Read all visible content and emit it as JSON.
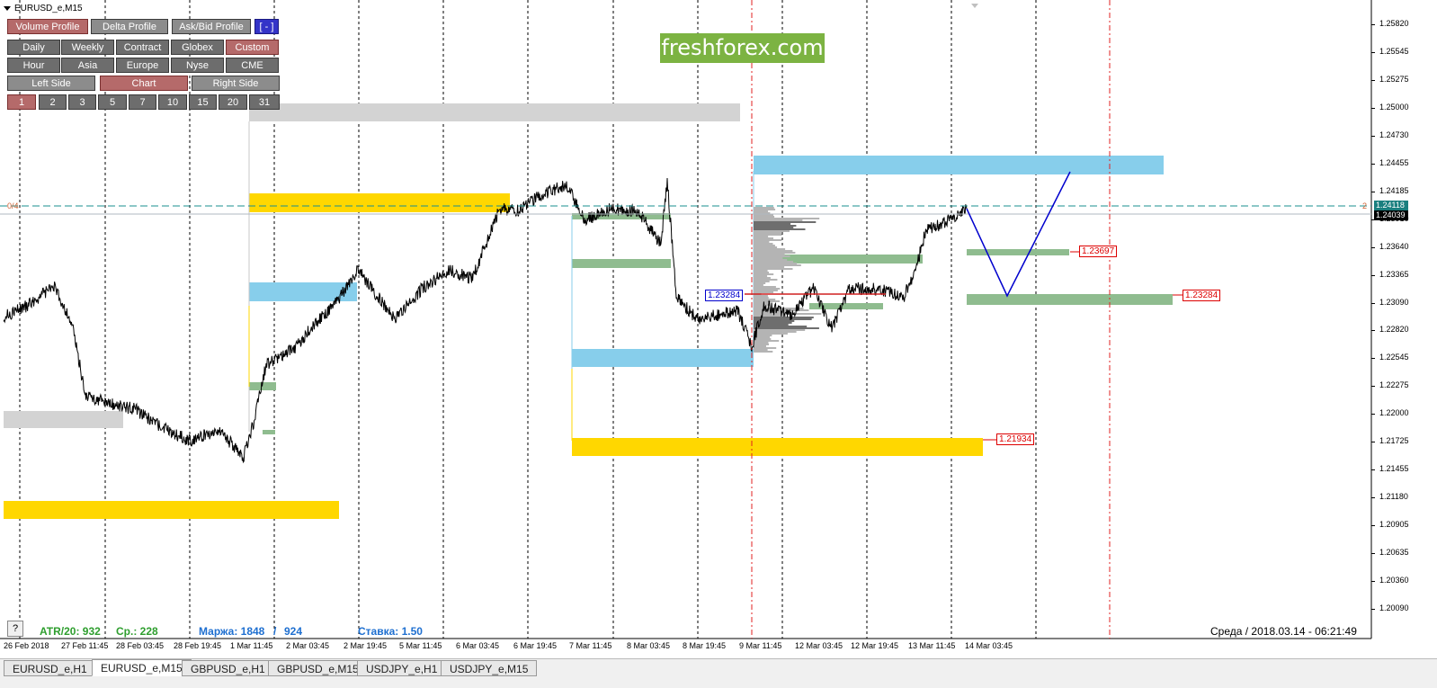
{
  "window": {
    "symbol": "EURUSD_e,M15"
  },
  "panel": {
    "row1": [
      {
        "label": "Volume Profile",
        "state": "active"
      },
      {
        "label": "Delta Profile",
        "state": "light"
      },
      {
        "label": "Ask/Bid Profile",
        "state": "light"
      },
      {
        "label": "[ - ]",
        "state": "blue"
      }
    ],
    "row2": [
      {
        "label": "Daily",
        "state": "normal"
      },
      {
        "label": "Weekly",
        "state": "normal"
      },
      {
        "label": "Contract",
        "state": "normal"
      },
      {
        "label": "Globex",
        "state": "normal"
      },
      {
        "label": "Custom",
        "state": "active"
      }
    ],
    "row3": [
      {
        "label": "Hour",
        "state": "normal"
      },
      {
        "label": "Asia",
        "state": "normal"
      },
      {
        "label": "Europe",
        "state": "normal"
      },
      {
        "label": "Nyse",
        "state": "normal"
      },
      {
        "label": "CME",
        "state": "normal"
      }
    ],
    "row4": [
      {
        "label": "Left Side",
        "state": "light"
      },
      {
        "label": "Chart",
        "state": "active"
      },
      {
        "label": "Right Side",
        "state": "light"
      }
    ],
    "row5": [
      {
        "label": "1",
        "state": "active"
      },
      {
        "label": "2",
        "state": "normal"
      },
      {
        "label": "3",
        "state": "normal"
      },
      {
        "label": "5",
        "state": "normal"
      },
      {
        "label": "7",
        "state": "normal"
      },
      {
        "label": "10",
        "state": "normal"
      },
      {
        "label": "15",
        "state": "normal"
      },
      {
        "label": "20",
        "state": "normal"
      },
      {
        "label": "31",
        "state": "normal"
      }
    ]
  },
  "watermark": "freshforex.com",
  "price_axis": [
    "1.25820",
    "1.25545",
    "1.25275",
    "1.25000",
    "1.24730",
    "1.24455",
    "1.24185",
    "1.23910",
    "1.23640",
    "1.23365",
    "1.23090",
    "1.22820",
    "1.22545",
    "1.22275",
    "1.22000",
    "1.21725",
    "1.21455",
    "1.21180",
    "1.20905",
    "1.20635",
    "1.20360",
    "1.20090"
  ],
  "price_tags": [
    {
      "label": "1.24118",
      "color": "#1a7f7f"
    },
    {
      "label": "1.24039",
      "color": "#000000"
    }
  ],
  "time_axis": [
    "26 Feb 2018",
    "27 Feb 11:45",
    "28 Feb 03:45",
    "28 Feb 19:45",
    "1 Mar 11:45",
    "2 Mar 03:45",
    "2 Mar 19:45",
    "5 Mar 11:45",
    "6 Mar 03:45",
    "6 Mar 19:45",
    "7 Mar 11:45",
    "8 Mar 03:45",
    "8 Mar 19:45",
    "9 Mar 11:45",
    "12 Mar 03:45",
    "12 Mar 19:45",
    "13 Mar 11:45",
    "14 Mar 03:45"
  ],
  "level_labels": [
    {
      "label": "1.23697",
      "style": "red"
    },
    {
      "label": "1.23284",
      "style": "red"
    },
    {
      "label": "1.21934",
      "style": "red"
    },
    {
      "label": "1.23284",
      "style": "blue"
    }
  ],
  "edge_labels": {
    "left": "0/4",
    "right": "2"
  },
  "status": {
    "atr": "ATR/20: 932",
    "avg": "Ср.: 228",
    "margin_label": "Маржа: 1848",
    "margin_sep": "/",
    "margin_value": "924",
    "rate": "Ставка: 1.50"
  },
  "datetime": "Среда  /  2018.03.14  -  06:21:49",
  "help": "?",
  "tabs": [
    {
      "label": "EURUSD_e,H1",
      "active": false
    },
    {
      "label": "EURUSD_e,M15",
      "active": true
    },
    {
      "label": "GBPUSD_e,H1",
      "active": false
    },
    {
      "label": "GBPUSD_e,M15",
      "active": false
    },
    {
      "label": "USDJPY_e,H1",
      "active": false
    },
    {
      "label": "USDJPY_e,M15",
      "active": false
    }
  ],
  "colors": {
    "supply_zone": "#87ceeb",
    "demand_zone": "#ffd700",
    "grey_zone": "#d3d3d3",
    "green_level": "#8fbc8f",
    "price_line": "#000000",
    "projection": "#0000cd",
    "dashed_red": "#e02020",
    "dashed_teal": "#1a8f8f"
  }
}
